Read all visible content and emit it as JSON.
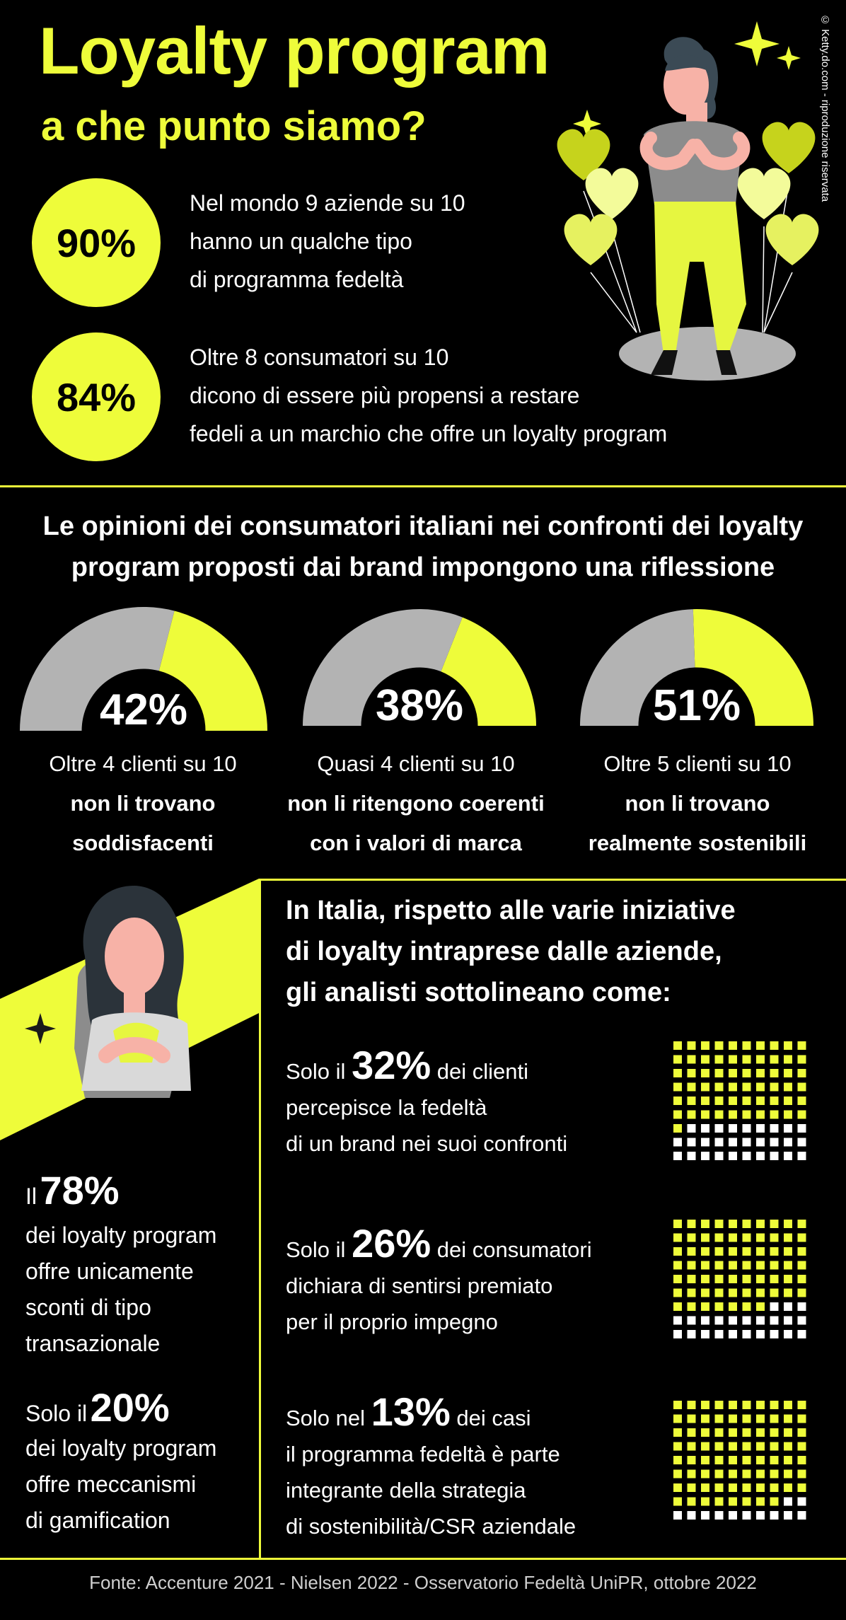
{
  "header": {
    "title": "Loyalty program",
    "subtitle": "a che punto siamo?",
    "copyright": "© Ketty.do.com - riproduzione riservata"
  },
  "global_stats": [
    {
      "value": "90%",
      "lines": [
        "Nel mondo 9 aziende su 10",
        "hanno un qualche tipo",
        "di programma fedeltà"
      ]
    },
    {
      "value": "84%",
      "lines": [
        "Oltre 8 consumatori su 10",
        "dicono di essere più propensi a restare",
        "fedeli a un marchio che offre un loyalty program"
      ]
    }
  ],
  "italy_opinions": {
    "heading_lines": [
      "Le opinioni dei consumatori italiani nei confronti dei loyalty",
      "program proposti dai brand impongono una riflessione"
    ],
    "gauges": [
      {
        "value": 42,
        "label": "42%",
        "line1": "Oltre 4 clienti su 10",
        "bold1": "non li trovano",
        "bold2": "soddisfacenti"
      },
      {
        "value": 38,
        "label": "38%",
        "line1": "Quasi 4 clienti su 10",
        "bold1": "non li ritengono coerenti",
        "bold2": "con i valori di marca"
      },
      {
        "value": 51,
        "label": "51%",
        "line1": "Oltre 5 clienti su 10",
        "bold1": "non li trovano",
        "bold2": "realmente sostenibili"
      }
    ],
    "colors": {
      "accent": "#eefc3a",
      "neutral": "#b3b3b3"
    }
  },
  "analysts": {
    "heading_lines": [
      "In Italia, rispetto alle varie  iniziative",
      "di loyalty intraprese dalle aziende,",
      "gli analisti sottolineano come:"
    ],
    "items": [
      {
        "prefix": "Solo il",
        "pct": "32%",
        "suffix": "dei clienti",
        "lines": [
          "percepisce la fedeltà",
          "di un brand nei suoi confronti"
        ],
        "value": 32
      },
      {
        "prefix": "Solo il",
        "pct": "26%",
        "suffix": "dei consumatori",
        "lines": [
          "dichiara di sentirsi premiato",
          "per il proprio impegno"
        ],
        "value": 26
      },
      {
        "prefix": "Solo nel",
        "pct": "13%",
        "suffix": "dei casi",
        "lines": [
          "il programma fedeltà è parte",
          "integrante della strategia",
          "di sostenibilità/CSR aziendale"
        ],
        "value": 13
      }
    ]
  },
  "left_stats": [
    {
      "prefix": "Il",
      "pct": "78%",
      "lines": [
        "dei loyalty program",
        "offre unicamente",
        "sconti di tipo",
        "transazionale"
      ]
    },
    {
      "prefix": "Solo il",
      "pct": "20%",
      "lines": [
        "dei loyalty program",
        "offre meccanismi",
        "di gamification"
      ]
    }
  ],
  "source": "Fonte: Accenture 2021 - Nielsen 2022 - Osservatorio Fedeltà UniPR, ottobre 2022"
}
